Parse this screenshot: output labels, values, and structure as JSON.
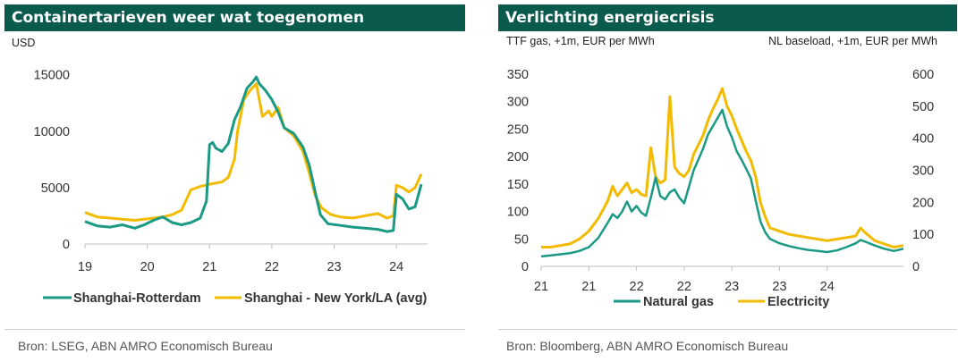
{
  "colors": {
    "header_bg": "#0b5a4e",
    "green": "#1a9a84",
    "gold": "#f2bb00",
    "axis": "#bdbdbd",
    "text": "#333333",
    "source_text": "#555555"
  },
  "left": {
    "title": "Containertarieven weer wat toegenomen",
    "unit": "USD",
    "source": "Bron: LSEG, ABN AMRO Economisch Bureau"
  },
  "right": {
    "title": "Verlichting energiecrisis",
    "unit_left": "TTF gas, +1m, EUR per MWh",
    "unit_right": "NL baseload, +1m, EUR per MWh",
    "source": "Bron: Bloomberg, ABN AMRO Economisch Bureau"
  },
  "chart_data": [
    {
      "type": "line",
      "title": "Containertarieven weer wat toegenomen",
      "ylabel": "USD",
      "xlim": [
        19,
        24.5
      ],
      "ylim": [
        0,
        16000
      ],
      "x_ticks": [
        "19",
        "20",
        "21",
        "22",
        "23",
        "24"
      ],
      "y_ticks": [
        "0",
        "5000",
        "10000",
        "15000"
      ],
      "y_tick_values": [
        0,
        5000,
        10000,
        15000
      ],
      "legend_position": "bottom",
      "series": [
        {
          "name": "Shanghai-Rotterdam",
          "color": "#1a9a84",
          "points": [
            [
              19.0,
              2000
            ],
            [
              19.2,
              1600
            ],
            [
              19.4,
              1500
            ],
            [
              19.6,
              1700
            ],
            [
              19.8,
              1400
            ],
            [
              19.95,
              1700
            ],
            [
              20.1,
              2100
            ],
            [
              20.25,
              2400
            ],
            [
              20.4,
              1900
            ],
            [
              20.55,
              1700
            ],
            [
              20.7,
              1900
            ],
            [
              20.85,
              2300
            ],
            [
              20.95,
              3800
            ],
            [
              21.0,
              8800
            ],
            [
              21.05,
              9000
            ],
            [
              21.1,
              8500
            ],
            [
              21.2,
              8200
            ],
            [
              21.3,
              8900
            ],
            [
              21.4,
              11000
            ],
            [
              21.5,
              12200
            ],
            [
              21.6,
              13800
            ],
            [
              21.7,
              14400
            ],
            [
              21.75,
              14800
            ],
            [
              21.8,
              14200
            ],
            [
              21.9,
              13600
            ],
            [
              22.0,
              12800
            ],
            [
              22.1,
              11700
            ],
            [
              22.2,
              10300
            ],
            [
              22.35,
              9800
            ],
            [
              22.5,
              8600
            ],
            [
              22.6,
              7000
            ],
            [
              22.7,
              4500
            ],
            [
              22.78,
              2600
            ],
            [
              22.9,
              1800
            ],
            [
              23.1,
              1650
            ],
            [
              23.3,
              1500
            ],
            [
              23.5,
              1400
            ],
            [
              23.7,
              1300
            ],
            [
              23.85,
              1100
            ],
            [
              23.95,
              1200
            ],
            [
              24.0,
              4400
            ],
            [
              24.1,
              4000
            ],
            [
              24.2,
              3100
            ],
            [
              24.3,
              3300
            ],
            [
              24.4,
              5300
            ]
          ]
        },
        {
          "name": "Shanghai - New York/LA (avg)",
          "color": "#f2bb00",
          "points": [
            [
              19.0,
              2800
            ],
            [
              19.2,
              2400
            ],
            [
              19.4,
              2300
            ],
            [
              19.6,
              2200
            ],
            [
              19.8,
              2100
            ],
            [
              19.95,
              2200
            ],
            [
              20.1,
              2300
            ],
            [
              20.25,
              2400
            ],
            [
              20.4,
              2600
            ],
            [
              20.55,
              3000
            ],
            [
              20.7,
              4800
            ],
            [
              20.85,
              5100
            ],
            [
              21.0,
              5300
            ],
            [
              21.1,
              5400
            ],
            [
              21.2,
              5500
            ],
            [
              21.3,
              5900
            ],
            [
              21.4,
              7500
            ],
            [
              21.45,
              10000
            ],
            [
              21.55,
              12800
            ],
            [
              21.65,
              13600
            ],
            [
              21.75,
              14200
            ],
            [
              21.85,
              11300
            ],
            [
              21.95,
              11800
            ],
            [
              22.0,
              11300
            ],
            [
              22.1,
              12100
            ],
            [
              22.2,
              10300
            ],
            [
              22.35,
              9600
            ],
            [
              22.5,
              8200
            ],
            [
              22.6,
              6300
            ],
            [
              22.7,
              4200
            ],
            [
              22.8,
              3200
            ],
            [
              22.95,
              2600
            ],
            [
              23.1,
              2400
            ],
            [
              23.3,
              2300
            ],
            [
              23.5,
              2500
            ],
            [
              23.7,
              2700
            ],
            [
              23.85,
              2300
            ],
            [
              23.95,
              2500
            ],
            [
              24.0,
              5200
            ],
            [
              24.1,
              5000
            ],
            [
              24.2,
              4600
            ],
            [
              24.3,
              5000
            ],
            [
              24.4,
              6200
            ]
          ]
        }
      ]
    },
    {
      "type": "line",
      "title": "Verlichting energiecrisis",
      "ylabel": "TTF gas, +1m, EUR per MWh",
      "ylabel_right": "NL baseload, +1m, EUR per MWh",
      "xlim": [
        21,
        24.8
      ],
      "ylim": [
        0,
        350
      ],
      "ylim_right": [
        0,
        600
      ],
      "x_ticks": [
        "21",
        "21",
        "22",
        "22",
        "23",
        "23",
        "24"
      ],
      "x_tick_values": [
        21.0,
        21.5,
        22.0,
        22.5,
        23.0,
        23.5,
        24.0
      ],
      "y_ticks": [
        "0",
        "50",
        "100",
        "150",
        "200",
        "250",
        "300",
        "350"
      ],
      "y_tick_values": [
        0,
        50,
        100,
        150,
        200,
        250,
        300,
        350
      ],
      "y_ticks_right": [
        "0",
        "100",
        "200",
        "300",
        "400",
        "500",
        "600"
      ],
      "y_tick_values_right": [
        0,
        100,
        200,
        300,
        400,
        500,
        600
      ],
      "legend_position": "bottom",
      "series": [
        {
          "name": "Natural gas",
          "axis": "left",
          "color": "#1a9a84",
          "points": [
            [
              21.0,
              18
            ],
            [
              21.1,
              20
            ],
            [
              21.2,
              22
            ],
            [
              21.3,
              24
            ],
            [
              21.4,
              28
            ],
            [
              21.5,
              35
            ],
            [
              21.6,
              52
            ],
            [
              21.7,
              80
            ],
            [
              21.75,
              95
            ],
            [
              21.8,
              88
            ],
            [
              21.85,
              100
            ],
            [
              21.9,
              118
            ],
            [
              21.95,
              100
            ],
            [
              22.0,
              110
            ],
            [
              22.05,
              98
            ],
            [
              22.1,
              92
            ],
            [
              22.15,
              125
            ],
            [
              22.2,
              162
            ],
            [
              22.25,
              128
            ],
            [
              22.3,
              122
            ],
            [
              22.35,
              135
            ],
            [
              22.4,
              140
            ],
            [
              22.45,
              125
            ],
            [
              22.5,
              115
            ],
            [
              22.55,
              145
            ],
            [
              22.6,
              175
            ],
            [
              22.65,
              195
            ],
            [
              22.7,
              215
            ],
            [
              22.75,
              240
            ],
            [
              22.8,
              255
            ],
            [
              22.85,
              270
            ],
            [
              22.9,
              285
            ],
            [
              22.95,
              255
            ],
            [
              23.0,
              235
            ],
            [
              23.05,
              210
            ],
            [
              23.1,
              195
            ],
            [
              23.15,
              178
            ],
            [
              23.2,
              160
            ],
            [
              23.25,
              120
            ],
            [
              23.3,
              82
            ],
            [
              23.35,
              62
            ],
            [
              23.4,
              50
            ],
            [
              23.5,
              42
            ],
            [
              23.6,
              37
            ],
            [
              23.7,
              33
            ],
            [
              23.8,
              30
            ],
            [
              23.9,
              28
            ],
            [
              24.0,
              26
            ],
            [
              24.1,
              29
            ],
            [
              24.2,
              35
            ],
            [
              24.3,
              42
            ],
            [
              24.35,
              48
            ],
            [
              24.4,
              45
            ],
            [
              24.5,
              38
            ],
            [
              24.6,
              32
            ],
            [
              24.7,
              28
            ],
            [
              24.8,
              32
            ]
          ]
        },
        {
          "name": "Electricity",
          "axis": "right",
          "color": "#f2bb00",
          "points": [
            [
              21.0,
              60
            ],
            [
              21.1,
              60
            ],
            [
              21.2,
              65
            ],
            [
              21.3,
              70
            ],
            [
              21.4,
              85
            ],
            [
              21.5,
              110
            ],
            [
              21.6,
              150
            ],
            [
              21.7,
              205
            ],
            [
              21.75,
              250
            ],
            [
              21.8,
              220
            ],
            [
              21.85,
              240
            ],
            [
              21.9,
              260
            ],
            [
              21.95,
              230
            ],
            [
              22.0,
              240
            ],
            [
              22.05,
              225
            ],
            [
              22.1,
              220
            ],
            [
              22.15,
              370
            ],
            [
              22.2,
              280
            ],
            [
              22.25,
              260
            ],
            [
              22.3,
              270
            ],
            [
              22.35,
              530
            ],
            [
              22.4,
              310
            ],
            [
              22.45,
              290
            ],
            [
              22.5,
              280
            ],
            [
              22.55,
              300
            ],
            [
              22.6,
              350
            ],
            [
              22.65,
              380
            ],
            [
              22.7,
              410
            ],
            [
              22.75,
              455
            ],
            [
              22.8,
              490
            ],
            [
              22.85,
              520
            ],
            [
              22.9,
              555
            ],
            [
              22.95,
              500
            ],
            [
              23.0,
              470
            ],
            [
              23.05,
              430
            ],
            [
              23.1,
              395
            ],
            [
              23.15,
              360
            ],
            [
              23.2,
              330
            ],
            [
              23.25,
              280
            ],
            [
              23.3,
              200
            ],
            [
              23.35,
              155
            ],
            [
              23.4,
              120
            ],
            [
              23.5,
              110
            ],
            [
              23.6,
              100
            ],
            [
              23.7,
              95
            ],
            [
              23.8,
              90
            ],
            [
              23.9,
              85
            ],
            [
              24.0,
              80
            ],
            [
              24.1,
              85
            ],
            [
              24.2,
              90
            ],
            [
              24.3,
              95
            ],
            [
              24.35,
              120
            ],
            [
              24.4,
              105
            ],
            [
              24.5,
              80
            ],
            [
              24.6,
              70
            ],
            [
              24.7,
              60
            ],
            [
              24.8,
              65
            ]
          ]
        }
      ]
    }
  ]
}
